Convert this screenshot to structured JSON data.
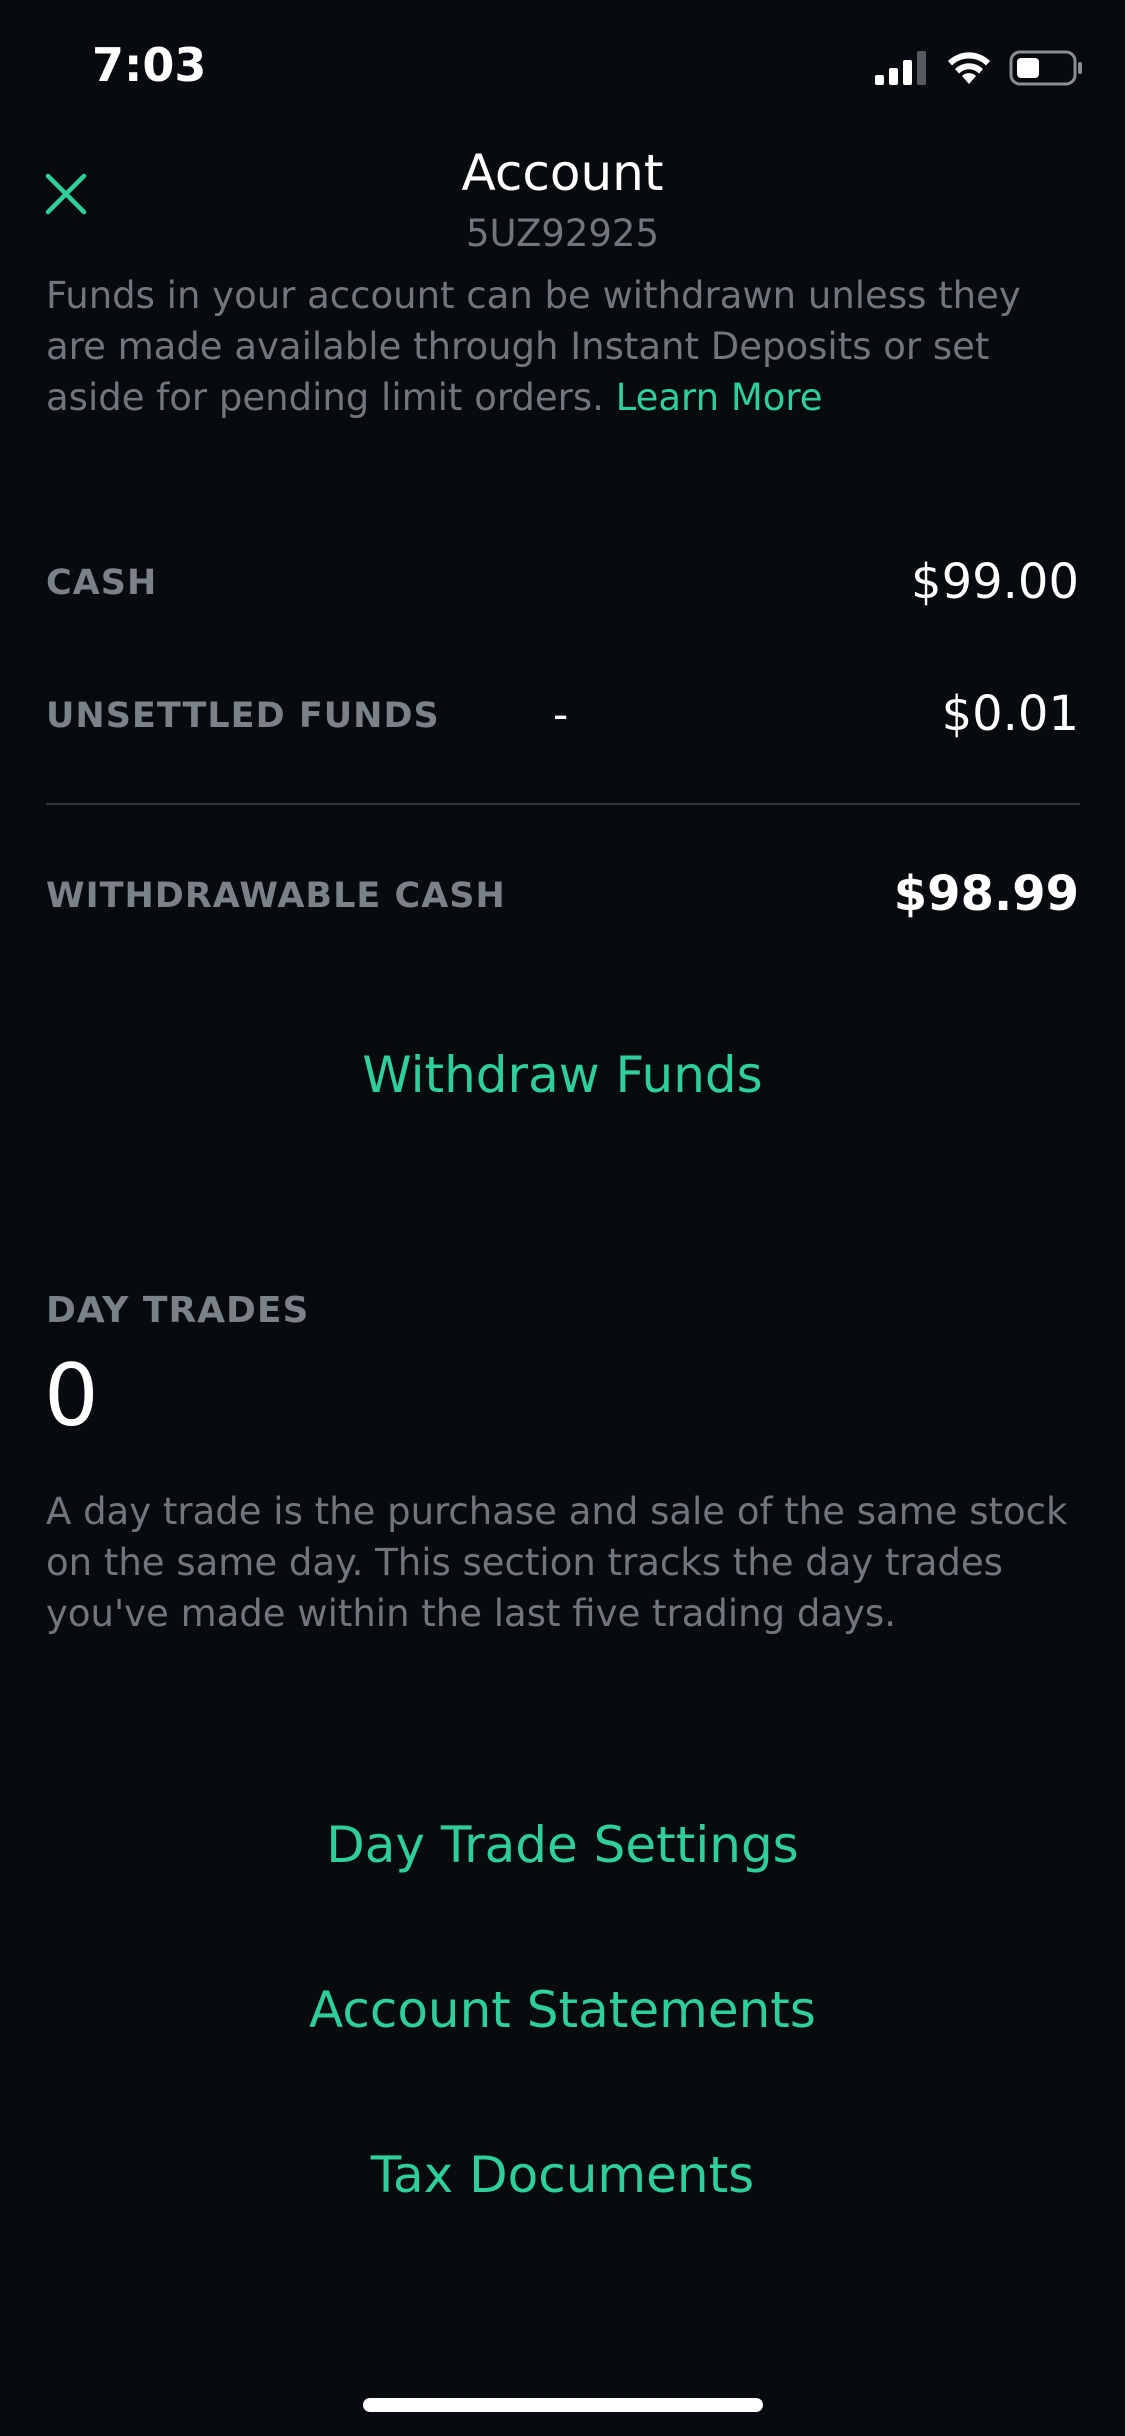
{
  "status_bar": {
    "time": "7:03"
  },
  "header": {
    "title": "Account",
    "account_number": "5UZ92925"
  },
  "info": {
    "text": "Funds in your account can be withdrawn unless they are made available through Instant Deposits or set aside for pending limit orders. ",
    "link_label": "Learn More"
  },
  "balances": {
    "cash_label": "CASH",
    "cash_value": "$99.00",
    "unsettled_label": "UNSETTLED FUNDS",
    "unsettled_sign": "-",
    "unsettled_value": "$0.01",
    "withdrawable_label": "WITHDRAWABLE CASH",
    "withdrawable_value": "$98.99"
  },
  "actions": {
    "withdraw_label": "Withdraw Funds"
  },
  "day_trades": {
    "label": "DAY TRADES",
    "count": "0",
    "description": "A day trade is the purchase and sale of the same stock on the same day. This section tracks the day trades you've made within the last five trading days."
  },
  "links": {
    "day_trade_settings": "Day Trade Settings",
    "account_statements": "Account Statements",
    "tax_documents": "Tax Documents"
  },
  "colors": {
    "background": "#070b10",
    "accent": "#2fcf9b",
    "muted_text": "#6f767c"
  },
  "icons": {
    "close": "close-icon",
    "signal": "cellular-signal-icon",
    "wifi": "wifi-icon",
    "battery": "battery-icon"
  }
}
